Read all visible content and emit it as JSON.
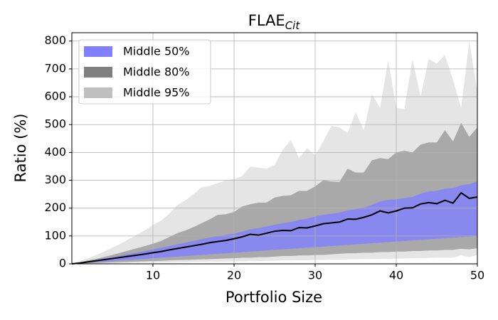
{
  "chart_data": {
    "type": "fan",
    "title": "FLAE",
    "title_subscript": "Cit",
    "xlabel": "Portfolio Size",
    "ylabel": "Ratio (%)",
    "xlim": [
      0,
      50
    ],
    "ylim": [
      0,
      830
    ],
    "xticks": [
      10,
      20,
      30,
      40,
      50
    ],
    "yticks": [
      0,
      100,
      200,
      300,
      400,
      500,
      600,
      700,
      800
    ],
    "grid": true,
    "legend": "upper left",
    "x": [
      0,
      1,
      2,
      3,
      4,
      5,
      6,
      7,
      8,
      9,
      10,
      11,
      12,
      13,
      14,
      15,
      16,
      17,
      18,
      19,
      20,
      21,
      22,
      23,
      24,
      25,
      26,
      27,
      28,
      29,
      30,
      31,
      32,
      33,
      34,
      35,
      36,
      37,
      38,
      39,
      40,
      41,
      42,
      43,
      44,
      45,
      46,
      47,
      48,
      49,
      50
    ],
    "bands": [
      {
        "name": "Middle 50%",
        "color": "#8080ff",
        "alpha": 0.8,
        "upper": [
          0,
          4,
          9,
          14,
          19,
          24,
          29,
          35,
          40,
          46,
          52,
          58,
          64,
          70,
          76,
          82,
          88,
          94,
          100,
          104,
          108,
          116,
          124,
          128,
          134,
          140,
          146,
          150,
          158,
          162,
          170,
          176,
          180,
          184,
          192,
          196,
          202,
          212,
          224,
          230,
          232,
          236,
          240,
          252,
          260,
          262,
          270,
          272,
          282,
          286,
          296
        ],
        "lower": [
          0,
          2,
          4,
          6,
          8,
          10,
          12,
          14,
          16,
          18,
          20,
          22,
          24,
          26,
          28,
          30,
          32,
          34,
          36,
          38,
          40,
          42,
          44,
          46,
          48,
          50,
          52,
          54,
          56,
          58,
          60,
          62,
          64,
          66,
          68,
          70,
          72,
          74,
          76,
          78,
          80,
          82,
          84,
          86,
          88,
          90,
          92,
          94,
          96,
          98,
          100
        ]
      },
      {
        "name": "Middle 80%",
        "color": "#808080",
        "alpha": 0.6,
        "upper": [
          0,
          6,
          12,
          18,
          25,
          32,
          40,
          48,
          56,
          64,
          72,
          82,
          96,
          110,
          120,
          132,
          146,
          160,
          176,
          178,
          186,
          206,
          214,
          220,
          220,
          238,
          244,
          246,
          262,
          262,
          278,
          300,
          296,
          294,
          342,
          328,
          328,
          372,
          380,
          376,
          400,
          406,
          400,
          428,
          436,
          436,
          480,
          440,
          506,
          456,
          490
        ],
        "lower": [
          0,
          1,
          2,
          3,
          4,
          5,
          6,
          7,
          8,
          9,
          10,
          11,
          12,
          13,
          14,
          15,
          16,
          17,
          18,
          19,
          20,
          22,
          22,
          24,
          24,
          26,
          28,
          28,
          30,
          30,
          32,
          32,
          34,
          36,
          38,
          38,
          40,
          40,
          42,
          42,
          44,
          44,
          46,
          46,
          48,
          48,
          50,
          50,
          54,
          52,
          56
        ]
      },
      {
        "name": "Middle 95%",
        "color": "#bfbfbf",
        "alpha": 0.4,
        "upper": [
          0,
          10,
          20,
          32,
          44,
          58,
          72,
          88,
          104,
          120,
          140,
          155,
          180,
          210,
          228,
          250,
          275,
          280,
          290,
          300,
          305,
          315,
          350,
          345,
          342,
          355,
          410,
          445,
          380,
          415,
          390,
          440,
          495,
          490,
          470,
          545,
          480,
          610,
          560,
          730,
          560,
          555,
          735,
          600,
          735,
          720,
          750,
          660,
          560,
          800,
          620
        ],
        "lower": [
          0,
          0,
          1,
          1,
          2,
          2,
          3,
          3,
          3,
          4,
          4,
          5,
          5,
          6,
          6,
          7,
          7,
          8,
          8,
          8,
          9,
          9,
          10,
          10,
          11,
          11,
          12,
          12,
          13,
          13,
          14,
          14,
          15,
          15,
          16,
          16,
          17,
          17,
          18,
          18,
          19,
          19,
          20,
          20,
          21,
          22,
          22,
          22,
          30,
          24,
          32
        ]
      }
    ],
    "median": {
      "color": "#000000",
      "values": [
        0,
        3,
        7,
        11,
        15,
        19,
        23,
        27,
        31,
        35,
        40,
        44,
        50,
        55,
        60,
        65,
        70,
        76,
        80,
        84,
        90,
        97,
        106,
        103,
        110,
        117,
        120,
        119,
        130,
        129,
        136,
        144,
        147,
        150,
        161,
        160,
        167,
        176,
        190,
        183,
        190,
        200,
        201,
        215,
        220,
        216,
        228,
        218,
        255,
        235,
        240
      ]
    }
  }
}
